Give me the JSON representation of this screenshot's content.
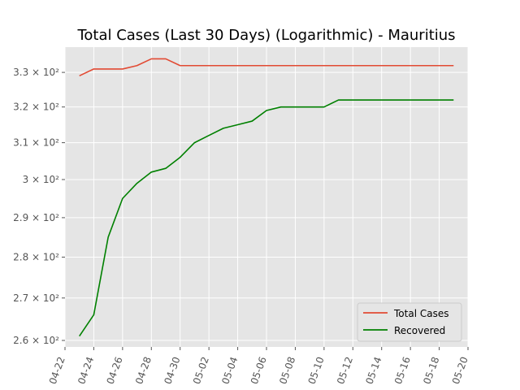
{
  "chart_data": {
    "type": "line",
    "title": "Total Cases (Last 30 Days) (Logarithmic) - Mauritius",
    "xlabel": "",
    "ylabel": "",
    "y_scale": "log",
    "grid": true,
    "legend_position": "lower-right",
    "x": [
      "04-23",
      "04-24",
      "04-25",
      "04-26",
      "04-27",
      "04-28",
      "04-29",
      "04-30",
      "05-01",
      "05-02",
      "05-03",
      "05-04",
      "05-05",
      "05-06",
      "05-07",
      "05-08",
      "05-09",
      "05-10",
      "05-11",
      "05-12",
      "05-13",
      "05-14",
      "05-15",
      "05-16",
      "05-17",
      "05-18",
      "05-19"
    ],
    "series": [
      {
        "name": "Total Cases",
        "color": "#e24a33",
        "values": [
          329,
          331,
          331,
          331,
          332,
          334,
          334,
          332,
          332,
          332,
          332,
          332,
          332,
          332,
          332,
          332,
          332,
          332,
          332,
          332,
          332,
          332,
          332,
          332,
          332,
          332,
          332
        ]
      },
      {
        "name": "Recovered",
        "color": "#008000",
        "values": [
          261,
          266,
          285,
          295,
          299,
          302,
          303,
          306,
          310,
          312,
          314,
          315,
          316,
          319,
          320,
          320,
          320,
          320,
          322,
          322,
          322,
          322,
          322,
          322,
          322,
          322,
          322
        ]
      }
    ],
    "xlim": [
      "04-22",
      "05-20"
    ],
    "x_tick_labels": [
      "04-22",
      "04-24",
      "04-26",
      "04-28",
      "04-30",
      "05-02",
      "05-04",
      "05-06",
      "05-08",
      "05-10",
      "05-12",
      "05-14",
      "05-16",
      "05-18",
      "05-20"
    ],
    "y_ticks": [
      260,
      270,
      280,
      290,
      300,
      310,
      320,
      330
    ],
    "y_tick_labels": [
      "2.6 × 10²",
      "2.7 × 10²",
      "2.8 × 10²",
      "2.9 × 10²",
      "3 × 10²",
      "3.1 × 10²",
      "3.2 × 10²",
      "3.3 × 10²"
    ]
  }
}
